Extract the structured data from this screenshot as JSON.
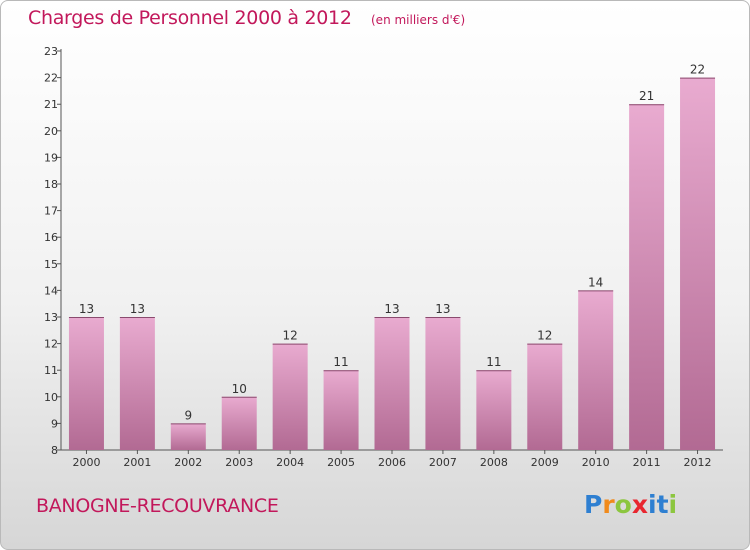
{
  "title": "Charges de Personnel 2000 à 2012",
  "subtitle": "(en milliers d'€)",
  "city": "BANOGNE-RECOUVRANCE",
  "logo": {
    "letters": [
      "P",
      "r",
      "o",
      "x",
      "i",
      "t",
      "i"
    ],
    "colors": [
      "#2e7fd1",
      "#f08a1c",
      "#8cc63f",
      "#e8262f",
      "#2e7fd1",
      "#2e7fd1",
      "#8cc63f"
    ]
  },
  "colors": {
    "title": "#c2185b",
    "bar_top": "#e9abd0",
    "bar_bottom": "#b26a93"
  },
  "chart_data": {
    "type": "bar",
    "title": "Charges de Personnel 2000 à 2012",
    "subtitle": "(en milliers d'€)",
    "categories": [
      "2000",
      "2001",
      "2002",
      "2003",
      "2004",
      "2005",
      "2006",
      "2007",
      "2008",
      "2009",
      "2010",
      "2011",
      "2012"
    ],
    "values": [
      13,
      13,
      9,
      10,
      12,
      11,
      13,
      13,
      11,
      12,
      14,
      21,
      22
    ],
    "ylim": [
      8,
      23
    ],
    "yticks": [
      8,
      9,
      10,
      11,
      12,
      13,
      14,
      15,
      16,
      17,
      18,
      19,
      20,
      21,
      22,
      23
    ],
    "grid": false,
    "data_labels": true
  }
}
